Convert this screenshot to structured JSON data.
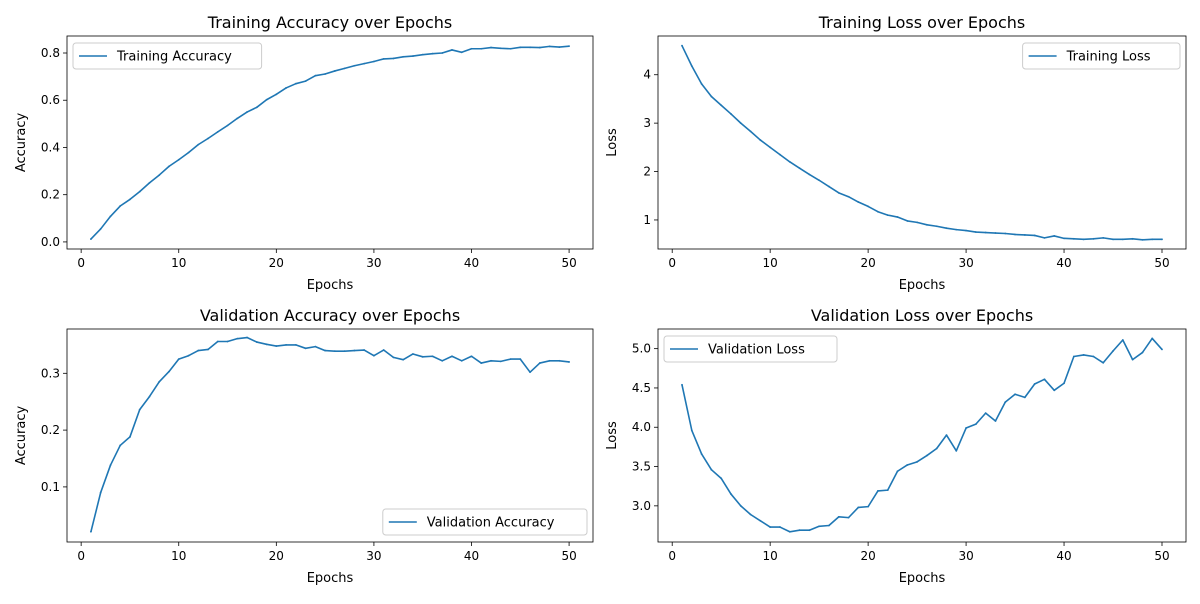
{
  "chart_data": [
    {
      "id": "train_acc",
      "type": "line",
      "title": "Training Accuracy over Epochs",
      "xlabel": "Epochs",
      "ylabel": "Accuracy",
      "xlim": [
        -1.45,
        52.45
      ],
      "ylim": [
        -0.03,
        0.872
      ],
      "xticks": [
        0,
        10,
        20,
        30,
        40,
        50
      ],
      "yticks": [
        0.0,
        0.2,
        0.4,
        0.6,
        0.8
      ],
      "ytick_labels": [
        "0.0",
        "0.2",
        "0.4",
        "0.6",
        "0.8"
      ],
      "legend_loc": "upper left",
      "series": [
        {
          "name": "Training Accuracy",
          "color": "#1f77b4",
          "x": [
            1,
            2,
            3,
            4,
            5,
            6,
            7,
            8,
            9,
            10,
            11,
            12,
            13,
            14,
            15,
            16,
            17,
            18,
            19,
            20,
            21,
            22,
            23,
            24,
            25,
            26,
            27,
            28,
            29,
            30,
            31,
            32,
            33,
            34,
            35,
            36,
            37,
            38,
            39,
            40,
            41,
            42,
            43,
            44,
            45,
            46,
            47,
            48,
            49,
            50
          ],
          "values": [
            0.012,
            0.055,
            0.108,
            0.152,
            0.18,
            0.213,
            0.25,
            0.283,
            0.32,
            0.348,
            0.378,
            0.412,
            0.438,
            0.466,
            0.493,
            0.523,
            0.55,
            0.57,
            0.602,
            0.625,
            0.652,
            0.67,
            0.681,
            0.704,
            0.711,
            0.724,
            0.735,
            0.746,
            0.755,
            0.764,
            0.775,
            0.777,
            0.784,
            0.787,
            0.793,
            0.797,
            0.8,
            0.813,
            0.803,
            0.818,
            0.818,
            0.823,
            0.82,
            0.818,
            0.824,
            0.824,
            0.823,
            0.828,
            0.825,
            0.829
          ]
        }
      ]
    },
    {
      "id": "train_loss",
      "type": "line",
      "title": "Training Loss over Epochs",
      "xlabel": "Epochs",
      "ylabel": "Loss",
      "xlim": [
        -1.45,
        52.45
      ],
      "ylim": [
        0.4,
        4.8
      ],
      "xticks": [
        0,
        10,
        20,
        30,
        40,
        50
      ],
      "yticks": [
        1,
        2,
        3,
        4
      ],
      "ytick_labels": [
        "1",
        "2",
        "3",
        "4"
      ],
      "legend_loc": "upper right",
      "series": [
        {
          "name": "Training Loss",
          "color": "#1f77b4",
          "x": [
            1,
            2,
            3,
            4,
            5,
            6,
            7,
            8,
            9,
            10,
            11,
            12,
            13,
            14,
            15,
            16,
            17,
            18,
            19,
            20,
            21,
            22,
            23,
            24,
            25,
            26,
            27,
            28,
            29,
            30,
            31,
            32,
            33,
            34,
            35,
            36,
            37,
            38,
            39,
            40,
            41,
            42,
            43,
            44,
            45,
            46,
            47,
            48,
            49,
            50
          ],
          "values": [
            4.6,
            4.18,
            3.81,
            3.55,
            3.37,
            3.19,
            3.0,
            2.83,
            2.65,
            2.5,
            2.35,
            2.2,
            2.07,
            1.94,
            1.82,
            1.69,
            1.56,
            1.48,
            1.37,
            1.28,
            1.17,
            1.1,
            1.06,
            0.98,
            0.95,
            0.9,
            0.87,
            0.83,
            0.8,
            0.78,
            0.75,
            0.74,
            0.73,
            0.72,
            0.7,
            0.69,
            0.68,
            0.63,
            0.67,
            0.62,
            0.61,
            0.6,
            0.61,
            0.63,
            0.6,
            0.6,
            0.61,
            0.59,
            0.6,
            0.6
          ]
        }
      ]
    },
    {
      "id": "val_acc",
      "type": "line",
      "title": "Validation Accuracy over Epochs",
      "xlabel": "Epochs",
      "ylabel": "Accuracy",
      "xlim": [
        -1.45,
        52.45
      ],
      "ylim": [
        0.003,
        0.378
      ],
      "xticks": [
        0,
        10,
        20,
        30,
        40,
        50
      ],
      "yticks": [
        0.1,
        0.2,
        0.3
      ],
      "ytick_labels": [
        "0.1",
        "0.2",
        "0.3"
      ],
      "legend_loc": "lower right",
      "series": [
        {
          "name": "Validation Accuracy",
          "color": "#1f77b4",
          "x": [
            1,
            2,
            3,
            4,
            5,
            6,
            7,
            8,
            9,
            10,
            11,
            12,
            13,
            14,
            15,
            16,
            17,
            18,
            19,
            20,
            21,
            22,
            23,
            24,
            25,
            26,
            27,
            28,
            29,
            30,
            31,
            32,
            33,
            34,
            35,
            36,
            37,
            38,
            39,
            40,
            41,
            42,
            43,
            44,
            45,
            46,
            47,
            48,
            49,
            50
          ],
          "values": [
            0.021,
            0.09,
            0.138,
            0.173,
            0.188,
            0.236,
            0.259,
            0.285,
            0.303,
            0.325,
            0.331,
            0.34,
            0.342,
            0.356,
            0.356,
            0.361,
            0.363,
            0.355,
            0.351,
            0.348,
            0.35,
            0.35,
            0.344,
            0.347,
            0.34,
            0.339,
            0.339,
            0.34,
            0.341,
            0.331,
            0.341,
            0.328,
            0.324,
            0.334,
            0.329,
            0.33,
            0.322,
            0.33,
            0.322,
            0.33,
            0.318,
            0.322,
            0.321,
            0.325,
            0.325,
            0.302,
            0.318,
            0.322,
            0.322,
            0.32
          ]
        }
      ]
    },
    {
      "id": "val_loss",
      "type": "line",
      "title": "Validation Loss over Epochs",
      "xlabel": "Epochs",
      "ylabel": "Loss",
      "xlim": [
        -1.45,
        52.45
      ],
      "ylim": [
        2.54,
        5.25
      ],
      "xticks": [
        0,
        10,
        20,
        30,
        40,
        50
      ],
      "yticks": [
        3.0,
        3.5,
        4.0,
        4.5,
        5.0
      ],
      "ytick_labels": [
        "3.0",
        "3.5",
        "4.0",
        "4.5",
        "5.0"
      ],
      "legend_loc": "upper left",
      "series": [
        {
          "name": "Validation Loss",
          "color": "#1f77b4",
          "x": [
            1,
            2,
            3,
            4,
            5,
            6,
            7,
            8,
            9,
            10,
            11,
            12,
            13,
            14,
            15,
            16,
            17,
            18,
            19,
            20,
            21,
            22,
            23,
            24,
            25,
            26,
            27,
            28,
            29,
            30,
            31,
            32,
            33,
            34,
            35,
            36,
            37,
            38,
            39,
            40,
            41,
            42,
            43,
            44,
            45,
            46,
            47,
            48,
            49,
            50
          ],
          "values": [
            4.54,
            3.96,
            3.66,
            3.46,
            3.35,
            3.15,
            3.0,
            2.89,
            2.81,
            2.73,
            2.73,
            2.67,
            2.69,
            2.69,
            2.74,
            2.75,
            2.86,
            2.85,
            2.98,
            2.99,
            3.19,
            3.2,
            3.44,
            3.52,
            3.56,
            3.64,
            3.73,
            3.9,
            3.7,
            3.99,
            4.04,
            4.18,
            4.08,
            4.32,
            4.42,
            4.38,
            4.55,
            4.61,
            4.47,
            4.56,
            4.9,
            4.92,
            4.9,
            4.82,
            4.97,
            5.11,
            4.86,
            4.95,
            5.13,
            4.99
          ]
        }
      ]
    }
  ]
}
